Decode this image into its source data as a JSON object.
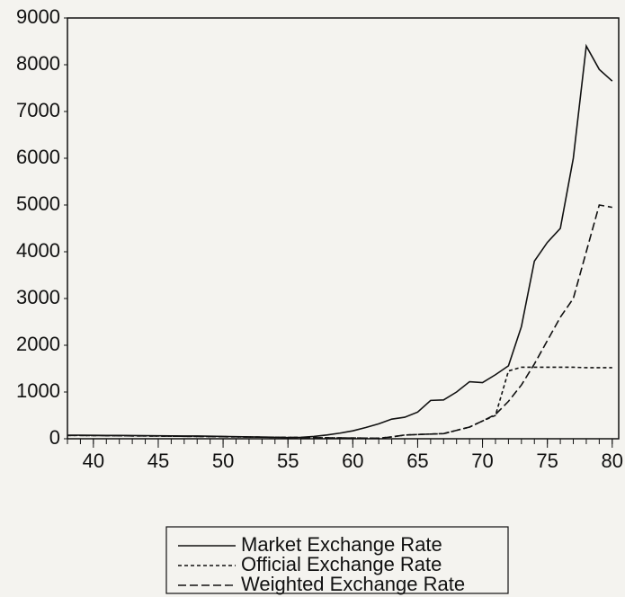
{
  "chart_data": {
    "type": "line",
    "x": [
      38,
      39,
      40,
      41,
      42,
      43,
      44,
      45,
      46,
      47,
      48,
      49,
      50,
      51,
      52,
      53,
      54,
      55,
      56,
      57,
      58,
      59,
      60,
      61,
      62,
      63,
      64,
      65,
      66,
      67,
      68,
      69,
      70,
      71,
      72,
      73,
      74,
      75,
      76,
      77,
      78,
      79,
      80
    ],
    "series": [
      {
        "name": "Market Exchange Rate",
        "color": "#111111",
        "style": "solid",
        "values": [
          75,
          75,
          74,
          72,
          70,
          68,
          66,
          64,
          62,
          60,
          58,
          55,
          50,
          45,
          40,
          35,
          30,
          25,
          30,
          50,
          80,
          120,
          170,
          240,
          320,
          420,
          460,
          570,
          820,
          830,
          1000,
          1220,
          1200,
          1370,
          1560,
          2400,
          3800,
          4200,
          4500,
          6000,
          8400,
          7900,
          7650
        ]
      },
      {
        "name": "Official Exchange Rate",
        "color": "#111111",
        "style": "dotted",
        "values": [
          70,
          70,
          68,
          66,
          64,
          62,
          60,
          58,
          55,
          52,
          50,
          47,
          44,
          41,
          38,
          35,
          32,
          29,
          26,
          23,
          20,
          18,
          16,
          14,
          12,
          40,
          80,
          90,
          100,
          110,
          180,
          250,
          380,
          500,
          1450,
          1530,
          1530,
          1530,
          1530,
          1530,
          1520,
          1520,
          1520
        ]
      },
      {
        "name": "Weighted Exchange Rate",
        "color": "#111111",
        "style": "dashed",
        "values": [
          70,
          70,
          68,
          66,
          64,
          62,
          60,
          58,
          55,
          52,
          50,
          47,
          44,
          41,
          38,
          35,
          32,
          29,
          26,
          23,
          20,
          18,
          16,
          14,
          12,
          40,
          80,
          90,
          100,
          110,
          180,
          250,
          380,
          520,
          800,
          1150,
          1600,
          2100,
          2600,
          3000,
          4000,
          5000,
          4950
        ]
      }
    ],
    "xlim": [
      38,
      80.5
    ],
    "ylim": [
      0,
      9000
    ],
    "xticks": [
      40,
      45,
      50,
      55,
      60,
      65,
      70,
      75,
      80
    ],
    "xticks_minor": [
      38,
      39,
      40,
      41,
      42,
      43,
      44,
      45,
      46,
      47,
      48,
      49,
      50,
      51,
      52,
      53,
      54,
      55,
      56,
      57,
      58,
      59,
      60,
      61,
      62,
      63,
      64,
      65,
      66,
      67,
      68,
      69,
      70,
      71,
      72,
      73,
      74,
      75,
      76,
      77,
      78,
      79,
      80
    ],
    "yticks": [
      0,
      1000,
      2000,
      3000,
      4000,
      5000,
      6000,
      7000,
      8000,
      9000
    ],
    "grid": false,
    "legend": "bottom"
  }
}
